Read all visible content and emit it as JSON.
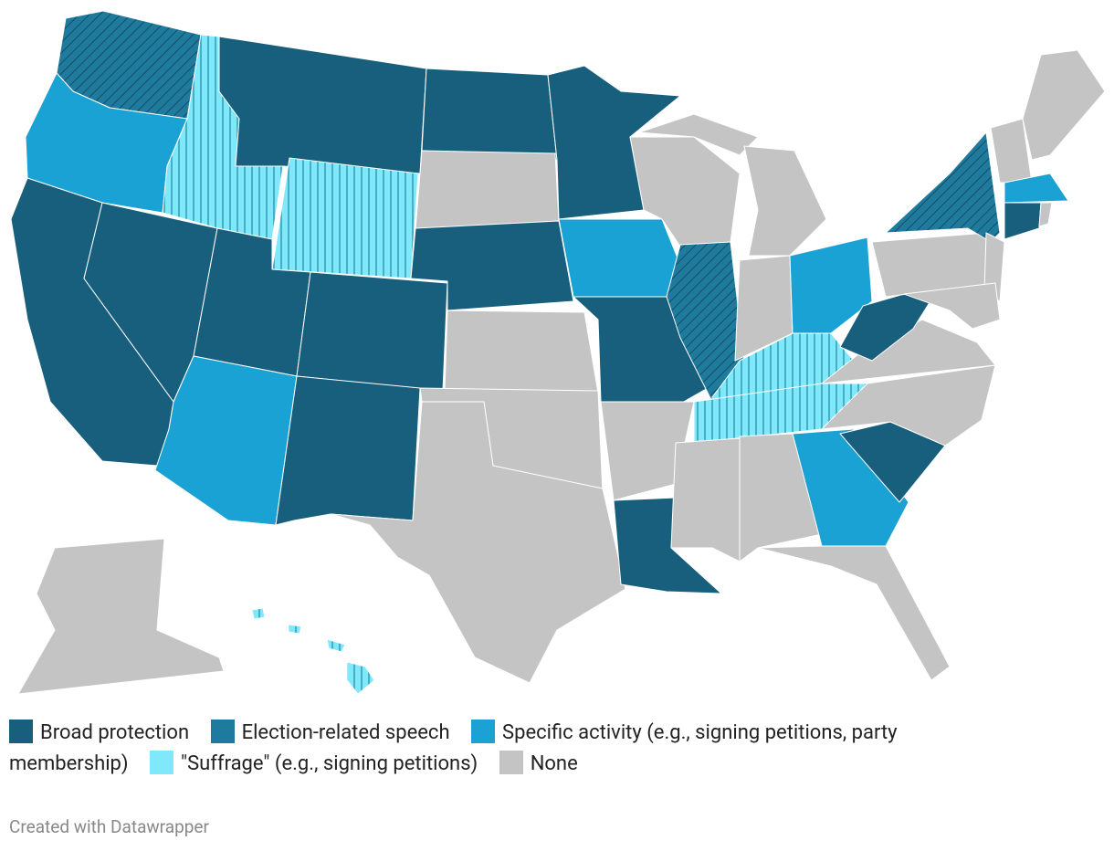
{
  "legend": [
    {
      "label": "Broad protection",
      "color": "#175f7d"
    },
    {
      "label": "Election-related speech",
      "color": "#1f7b9e"
    },
    {
      "label": "Specific activity (e.g., signing petitions, party membership)",
      "color": "#19a2d3"
    },
    {
      "label": "\"Suffrage\" (e.g., signing petitions)",
      "color": "#7fe8fb"
    },
    {
      "label": "None",
      "color": "#c4c4c4"
    }
  ],
  "footer": "Created with Datawrapper"
}
